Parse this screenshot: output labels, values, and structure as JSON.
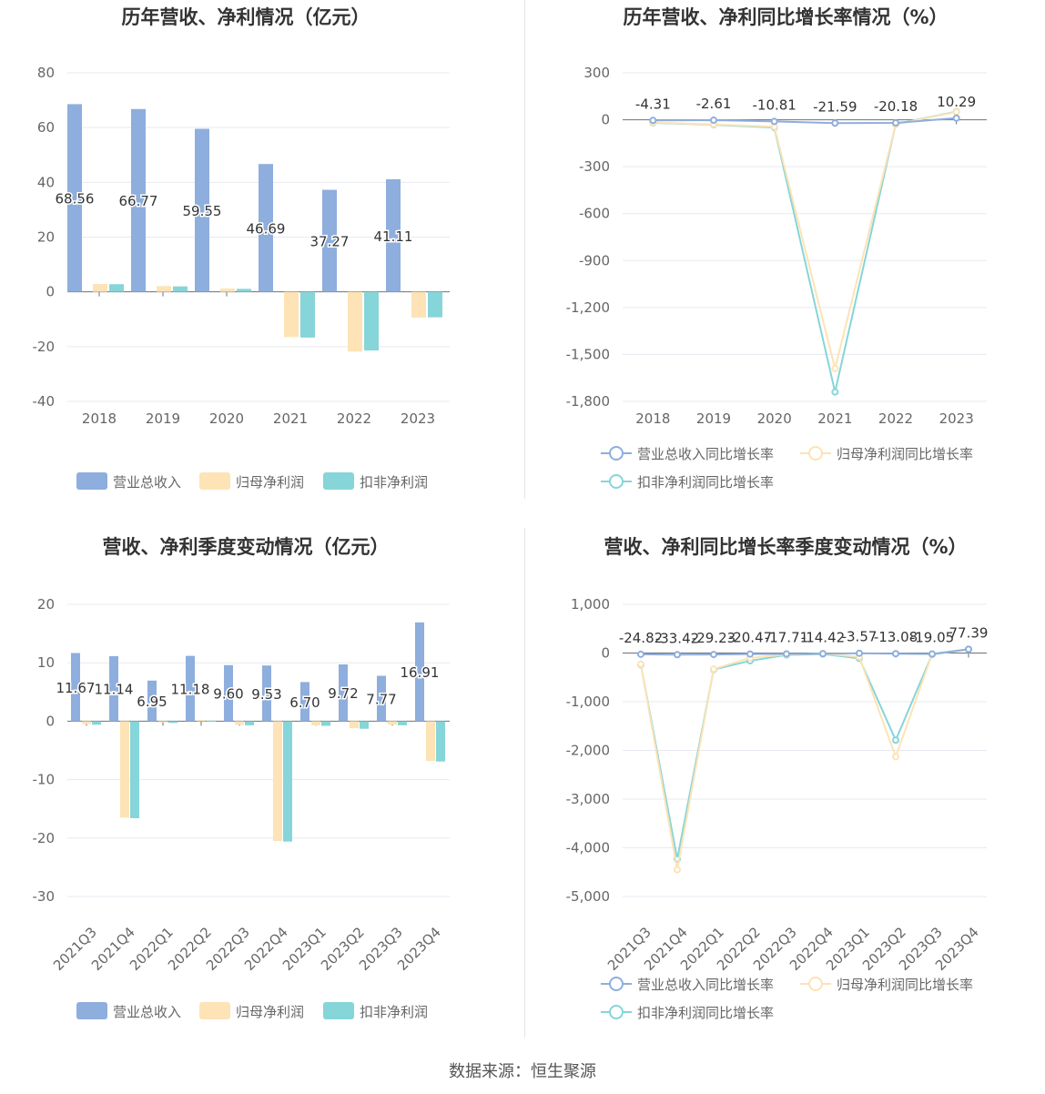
{
  "footer": {
    "source": "数据来源：恒生聚源"
  },
  "colors": {
    "revenue": "#8eaedd",
    "parent_profit": "#fde3b5",
    "deducted_profit": "#86d5d8"
  },
  "chart_data": [
    {
      "id": "annual_values",
      "type": "bar",
      "title": "历年营收、净利情况（亿元）",
      "categories": [
        "2018",
        "2019",
        "2020",
        "2021",
        "2022",
        "2023"
      ],
      "ylim": [
        -40,
        80
      ],
      "yticks": [
        80,
        60,
        40,
        20,
        0,
        -20,
        -40
      ],
      "yticks_text": [
        "80",
        "60",
        "40",
        "20",
        "0",
        "-20",
        "-40"
      ],
      "series": [
        {
          "name": "营业总收入",
          "color": "#8eaedd",
          "values": [
            68.56,
            66.77,
            59.55,
            46.69,
            37.27,
            41.11
          ],
          "labels": [
            "68.56",
            "66.77",
            "59.55",
            "46.69",
            "37.27",
            "41.11"
          ]
        },
        {
          "name": "归母净利润",
          "color": "#fde3b5",
          "values": [
            2.9,
            2.1,
            1.2,
            -16.5,
            -21.8,
            -9.4
          ]
        },
        {
          "name": "扣非净利润",
          "color": "#86d5d8",
          "values": [
            2.8,
            2.0,
            1.1,
            -16.7,
            -21.4,
            -9.3
          ]
        }
      ],
      "legend": "bottom"
    },
    {
      "id": "annual_growth",
      "type": "line",
      "title": "历年营收、净利同比增长率情况（%）",
      "categories": [
        "2018",
        "2019",
        "2020",
        "2021",
        "2022",
        "2023"
      ],
      "ylim": [
        -1800,
        300
      ],
      "yticks": [
        300,
        0,
        -300,
        -600,
        -900,
        -1200,
        -1500,
        -1800
      ],
      "yticks_text": [
        "300",
        "0",
        "-300",
        "-600",
        "-900",
        "-1,200",
        "-1,500",
        "-1,800"
      ],
      "series": [
        {
          "name": "营业总收入同比增长率",
          "color": "#8eaedd",
          "values": [
            -4.31,
            -2.61,
            -10.81,
            -21.59,
            -20.18,
            10.29
          ],
          "labels": [
            "-4.31",
            "-2.61",
            "-10.81",
            "-21.59",
            "-20.18",
            "10.29"
          ]
        },
        {
          "name": "归母净利润同比增长率",
          "color": "#fde3b5",
          "values": [
            -18,
            -30,
            -45,
            -1590,
            -30,
            50
          ]
        },
        {
          "name": "扣非净利润同比增长率",
          "color": "#86d5d8",
          "values": [
            -20,
            -32,
            -50,
            -1740,
            -28,
            52
          ]
        }
      ],
      "legend": "bottom"
    },
    {
      "id": "quarterly_values",
      "type": "bar",
      "title": "营收、净利季度变动情况（亿元）",
      "categories": [
        "2021Q3",
        "2021Q4",
        "2022Q1",
        "2022Q2",
        "2022Q3",
        "2022Q4",
        "2023Q1",
        "2023Q2",
        "2023Q3",
        "2023Q4"
      ],
      "ylim": [
        -30,
        20
      ],
      "yticks": [
        20,
        10,
        0,
        -10,
        -20,
        -30
      ],
      "yticks_text": [
        "20",
        "10",
        "0",
        "-10",
        "-20",
        "-30"
      ],
      "series": [
        {
          "name": "营业总收入",
          "color": "#8eaedd",
          "values": [
            11.67,
            11.14,
            6.95,
            11.18,
            9.6,
            9.53,
            6.7,
            9.72,
            7.77,
            16.91
          ],
          "labels": [
            "11.67",
            "11.14",
            "6.95",
            "11.18",
            "9.60",
            "9.53",
            "6.70",
            "9.72",
            "7.77",
            "16.91"
          ]
        },
        {
          "name": "归母净利润",
          "color": "#fde3b5",
          "values": [
            -0.5,
            -16.5,
            -0.2,
            0.2,
            -0.6,
            -20.5,
            -0.7,
            -1.2,
            -0.6,
            -6.8
          ]
        },
        {
          "name": "扣非净利润",
          "color": "#86d5d8",
          "values": [
            -0.6,
            -16.6,
            -0.3,
            0.1,
            -0.7,
            -20.6,
            -0.8,
            -1.3,
            -0.7,
            -6.9
          ]
        }
      ],
      "legend": "bottom"
    },
    {
      "id": "quarterly_growth",
      "type": "line",
      "title": "营收、净利同比增长率季度变动情况（%）",
      "categories": [
        "2021Q3",
        "2021Q4",
        "2022Q1",
        "2022Q2",
        "2022Q3",
        "2022Q4",
        "2023Q1",
        "2023Q2",
        "2023Q3",
        "2023Q4"
      ],
      "ylim": [
        -5000,
        1000
      ],
      "yticks": [
        1000,
        0,
        -1000,
        -2000,
        -3000,
        -4000,
        -5000
      ],
      "yticks_text": [
        "1,000",
        "0",
        "-1,000",
        "-2,000",
        "-3,000",
        "-4,000",
        "-5,000"
      ],
      "series": [
        {
          "name": "营业总收入同比增长率",
          "color": "#8eaedd",
          "values": [
            -24.82,
            -33.42,
            -29.23,
            -20.47,
            -17.71,
            -14.42,
            -3.57,
            -13.08,
            -19.05,
            77.39
          ],
          "labels": [
            "-24.82",
            "-33.42",
            "-29.23",
            "-20.47",
            "-17.71",
            "-14.42",
            "-3.57",
            "-13.08",
            "-19.05",
            "77.39"
          ]
        },
        {
          "name": "归母净利润同比增长率",
          "color": "#fde3b5",
          "values": [
            -230,
            -4450,
            -330,
            -100,
            -30,
            -10,
            -80,
            -2130,
            -20,
            80
          ]
        },
        {
          "name": "扣非净利润同比增长率",
          "color": "#86d5d8",
          "values": [
            -240,
            -4230,
            -340,
            -160,
            -40,
            -20,
            -110,
            -1790,
            -30,
            75
          ]
        }
      ],
      "legend": "bottom"
    }
  ]
}
